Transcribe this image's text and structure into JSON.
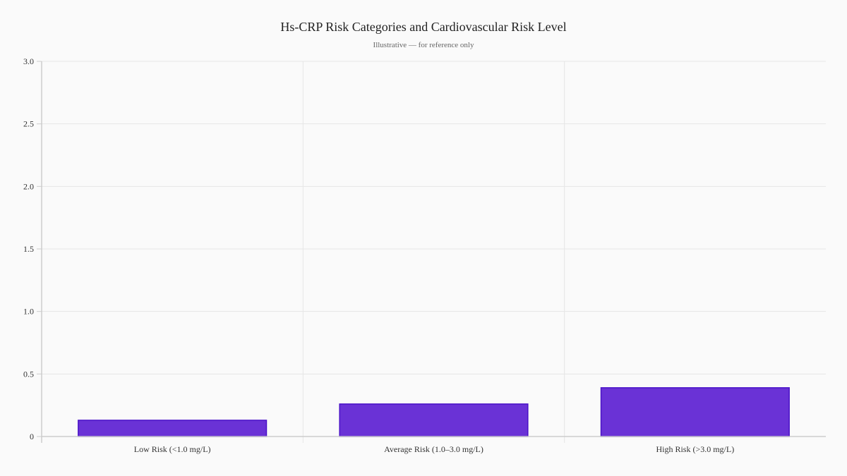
{
  "chart_data": {
    "type": "bar",
    "title": "Hs-CRP Risk Categories and Cardiovascular Risk Level",
    "subtitle": "Illustrative — for reference only",
    "categories": [
      "Low Risk (<1.0 mg/L)",
      "Average Risk (1.0–3.0 mg/L)",
      "High Risk (>3.0 mg/L)"
    ],
    "values": [
      0.13,
      0.26,
      0.39
    ],
    "xlabel": "",
    "ylabel": "",
    "ylim": [
      0,
      3.0
    ],
    "yticks": [
      0,
      0.5,
      1.0,
      1.5,
      2.0,
      2.5,
      3.0
    ],
    "ytick_labels": [
      "0",
      "0.5",
      "1.0",
      "1.5",
      "2.0",
      "2.5",
      "3.0"
    ],
    "grid": true,
    "legend": "none",
    "colors": {
      "bar_fill": "#6a32d6",
      "bar_stroke": "#4a12c8",
      "grid": "#e6e6e6",
      "axis": "#cccccc"
    }
  }
}
